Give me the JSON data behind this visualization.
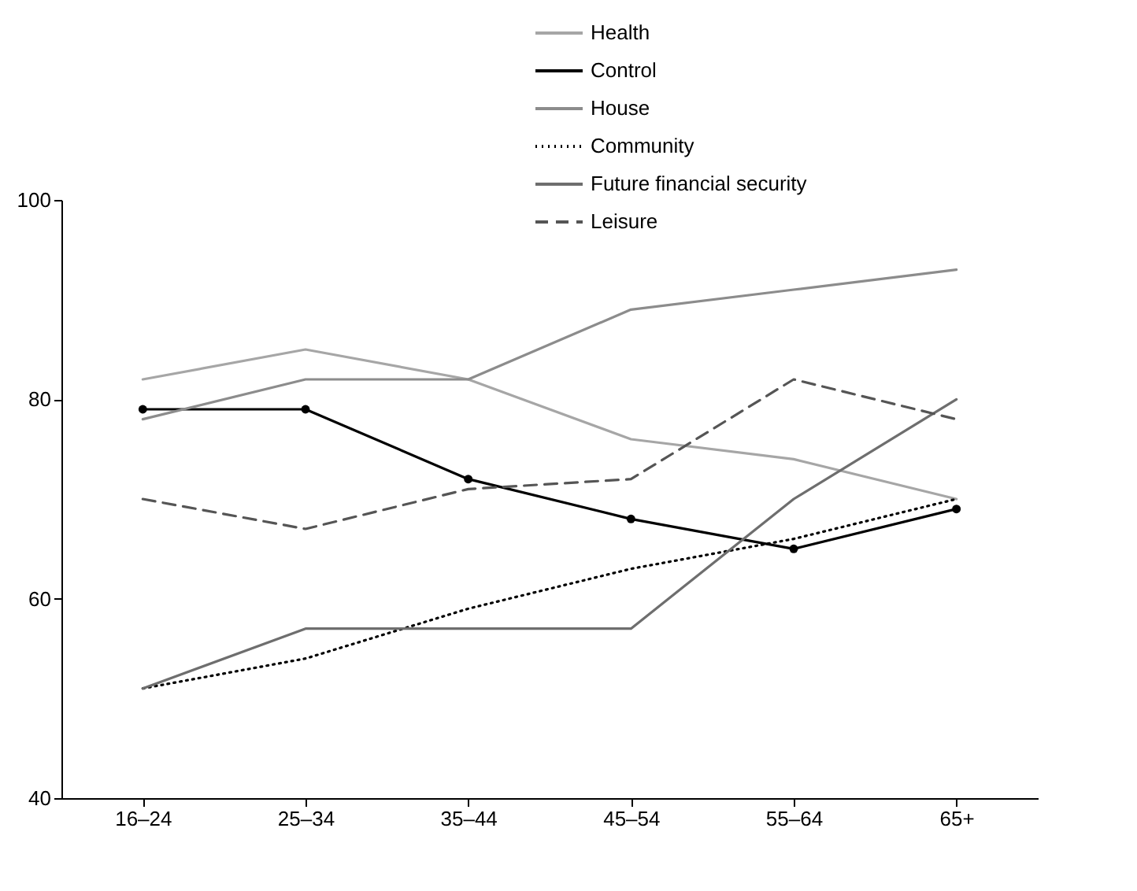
{
  "chart_data": {
    "type": "line",
    "categories": [
      "16–24",
      "25–34",
      "35–44",
      "45–54",
      "55–64",
      "65+"
    ],
    "ylim": [
      40,
      100
    ],
    "yticks": [
      40,
      60,
      80,
      100
    ],
    "grid": false,
    "legend": "top",
    "series": [
      {
        "name": "Health",
        "color": "#a6a6a6",
        "line_style": "solid",
        "marker": "none",
        "values": [
          82,
          85,
          82,
          76,
          74,
          70
        ]
      },
      {
        "name": "Control",
        "color": "#000000",
        "line_style": "solid",
        "marker": "circle",
        "values": [
          79,
          79,
          72,
          68,
          65,
          69
        ]
      },
      {
        "name": "House",
        "color": "#8c8c8c",
        "line_style": "solid",
        "marker": "none",
        "values": [
          78,
          82,
          82,
          89,
          91,
          93
        ]
      },
      {
        "name": "Community",
        "color": "#000000",
        "line_style": "dotted",
        "marker": "none",
        "values": [
          51,
          54,
          59,
          63,
          66,
          70
        ]
      },
      {
        "name": "Future financial security",
        "color": "#6e6e6e",
        "line_style": "solid",
        "marker": "none",
        "values": [
          51,
          57,
          57,
          57,
          70,
          80
        ]
      },
      {
        "name": "Leisure",
        "color": "#555555",
        "line_style": "dashed",
        "marker": "none",
        "values": [
          70,
          67,
          71,
          72,
          82,
          78
        ]
      }
    ]
  }
}
